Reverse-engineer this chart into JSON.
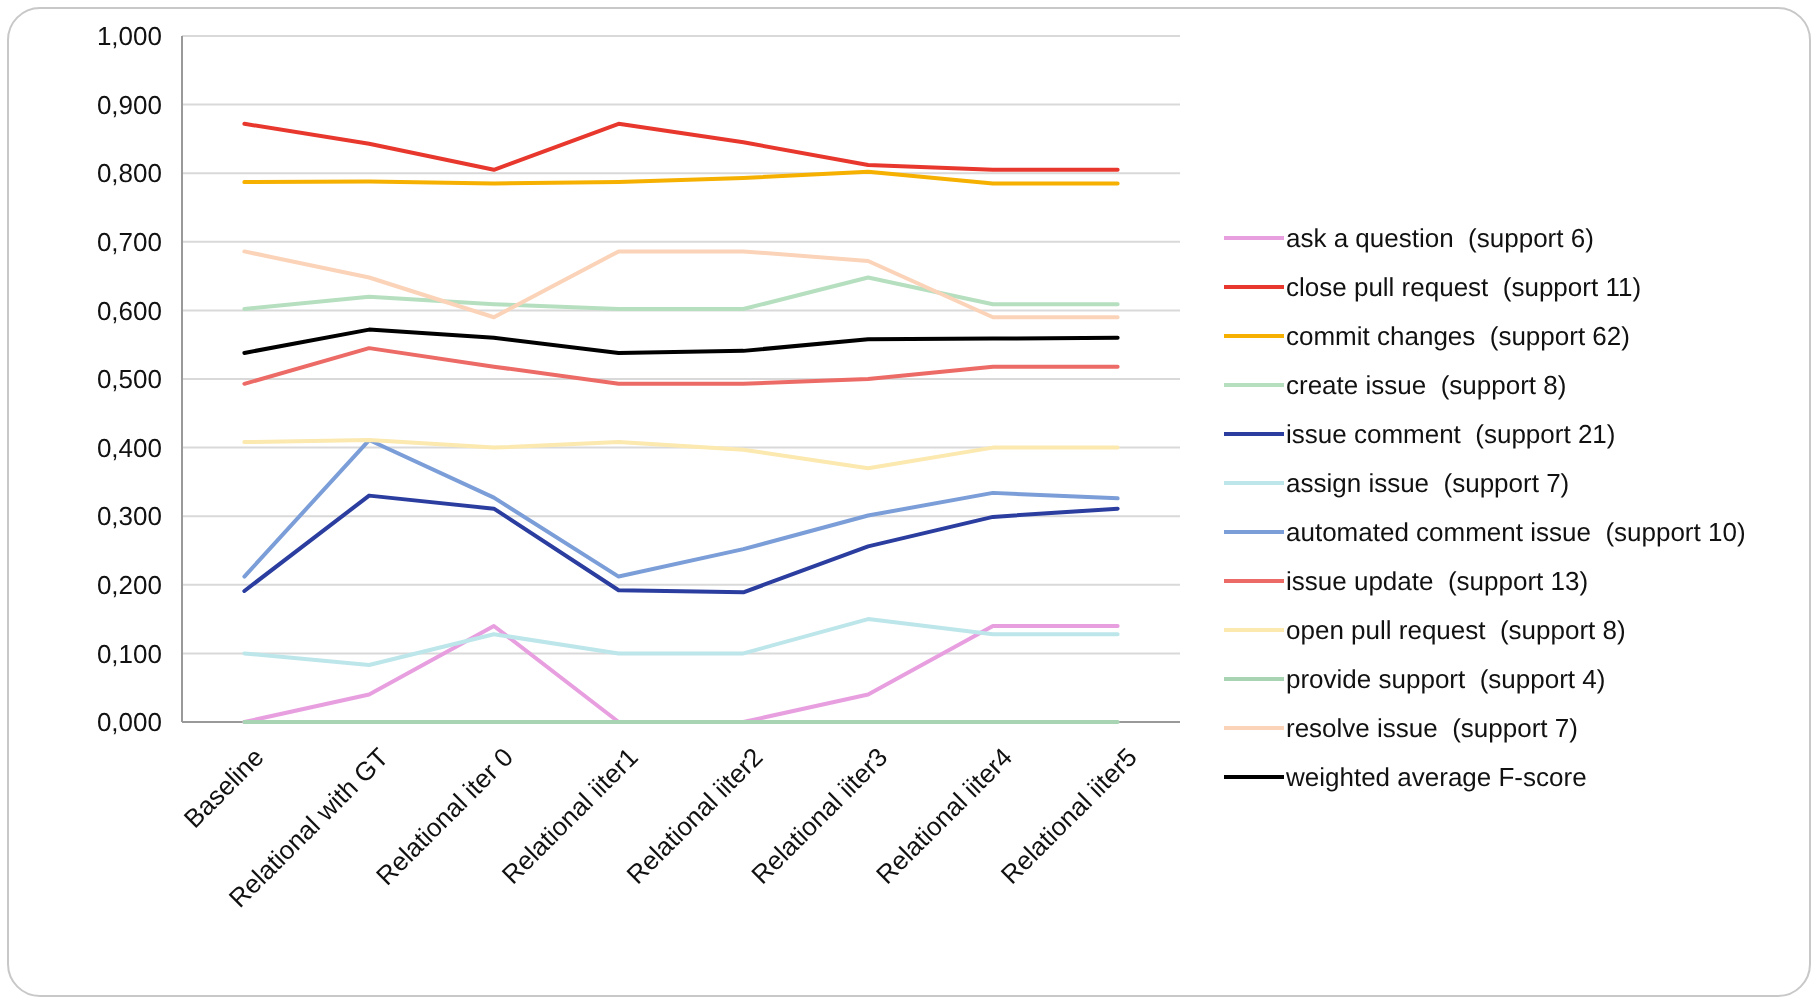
{
  "chart_data": {
    "type": "line",
    "categories": [
      "Baseline",
      "Relational with GT",
      "Relational iter 0",
      "Relational iiter1",
      "Relational iiter2",
      "Relational iiter3",
      "Relational iiter4",
      "Relational iiter5"
    ],
    "ylim": [
      0,
      1
    ],
    "yticks": [
      {
        "value": 0,
        "label": "0,000"
      },
      {
        "value": 0.1,
        "label": "0,100"
      },
      {
        "value": 0.2,
        "label": "0,200"
      },
      {
        "value": 0.3,
        "label": "0,300"
      },
      {
        "value": 0.4,
        "label": "0,400"
      },
      {
        "value": 0.5,
        "label": "0,500"
      },
      {
        "value": 0.6,
        "label": "0,600"
      },
      {
        "value": 0.7,
        "label": "0,700"
      },
      {
        "value": 0.8,
        "label": "0,800"
      },
      {
        "value": 0.9,
        "label": "0,900"
      },
      {
        "value": 1,
        "label": "1,000"
      }
    ],
    "grid": "y",
    "legend": "right",
    "marker": "none",
    "series": [
      {
        "name": "ask a question  (support 6)",
        "color": "#e89fe0",
        "values": [
          0,
          0.04,
          0.14,
          0,
          0,
          0.04,
          0.14,
          0.14
        ]
      },
      {
        "name": "close pull request  (support 11)",
        "color": "#e8382e",
        "values": [
          0.872,
          0.843,
          0.805,
          0.872,
          0.845,
          0.812,
          0.805,
          0.805
        ]
      },
      {
        "name": "commit changes  (support 62)",
        "color": "#f5b000",
        "values": [
          0.787,
          0.788,
          0.785,
          0.787,
          0.793,
          0.802,
          0.785,
          0.785
        ]
      },
      {
        "name": "create issue  (support 8)",
        "color": "#b6dfc0",
        "values": [
          0.602,
          0.62,
          0.609,
          0.602,
          0.602,
          0.648,
          0.609,
          0.609
        ]
      },
      {
        "name": "issue comment  (support 21)",
        "color": "#2b3ea0",
        "values": [
          0.191,
          0.33,
          0.311,
          0.192,
          0.189,
          0.256,
          0.299,
          0.311
        ]
      },
      {
        "name": "assign issue  (support 7)",
        "color": "#bde6ea",
        "values": [
          0.1,
          0.083,
          0.128,
          0.1,
          0.1,
          0.15,
          0.128,
          0.128
        ]
      },
      {
        "name": "automated comment issue  (support 10)",
        "color": "#7b9ed8",
        "values": [
          0.212,
          0.411,
          0.327,
          0.212,
          0.252,
          0.301,
          0.334,
          0.326
        ]
      },
      {
        "name": "issue update  (support 13)",
        "color": "#ec6b66",
        "values": [
          0.493,
          0.545,
          0.518,
          0.493,
          0.493,
          0.5,
          0.518,
          0.518
        ]
      },
      {
        "name": "open pull request  (support 8)",
        "color": "#fbe9b0",
        "values": [
          0.408,
          0.411,
          0.4,
          0.408,
          0.397,
          0.37,
          0.4,
          0.4
        ]
      },
      {
        "name": "provide support  (support 4)",
        "color": "#a9d4b3",
        "values": [
          0,
          0,
          0,
          0,
          0,
          0,
          0,
          0
        ]
      },
      {
        "name": "resolve issue  (support 7)",
        "color": "#fbd3b8",
        "values": [
          0.686,
          0.648,
          0.59,
          0.686,
          0.686,
          0.672,
          0.59,
          0.59
        ]
      },
      {
        "name": "weighted average F-score",
        "color": "#000000",
        "values": [
          0.538,
          0.572,
          0.56,
          0.538,
          0.541,
          0.558,
          0.559,
          0.56
        ]
      }
    ]
  }
}
